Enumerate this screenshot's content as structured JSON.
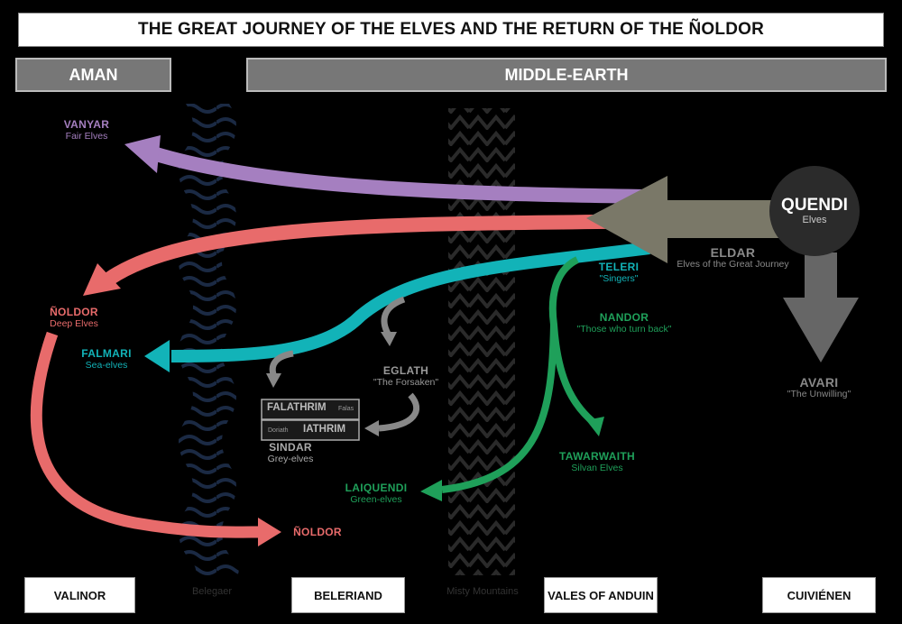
{
  "title": "THE GREAT JOURNEY OF THE ELVES AND THE RETURN OF THE ÑOLDOR",
  "regions": {
    "aman": "AMAN",
    "middle_earth": "MIDDLE-EARTH"
  },
  "locations": {
    "valinor": "VALINOR",
    "belegaer": "Belegaer",
    "beleriand": "BELERIAND",
    "misty_mountains": "Misty Mountains",
    "vales_of_anduin": "VALES OF ANDUIN",
    "cuivienen": "CUIVIÉNEN"
  },
  "groups": {
    "quendi": {
      "name": "QUENDI",
      "sub": "Elves"
    },
    "eldar": {
      "name": "ELDAR",
      "sub": "Elves of the Great Journey"
    },
    "avari": {
      "name": "AVARI",
      "sub": "\"The Unwilling\""
    },
    "vanyar": {
      "name": "VANYAR",
      "sub": "Fair Elves"
    },
    "noldor": {
      "name": "ÑOLDOR",
      "sub": "Deep Elves"
    },
    "noldor_return": {
      "name": "ÑOLDOR"
    },
    "teleri": {
      "name": "TELERI",
      "sub": "\"Singers\""
    },
    "falmari": {
      "name": "FALMARI",
      "sub": "Sea-elves"
    },
    "nandor": {
      "name": "NANDOR",
      "sub": "\"Those who turn back\""
    },
    "eglath": {
      "name": "EGLATH",
      "sub": "\"The Forsaken\""
    },
    "falathrim": {
      "name": "FALATHRIM",
      "tag": "Falas"
    },
    "iathrim": {
      "name": "IATHRIM",
      "tag": "Doriath"
    },
    "sindar": {
      "name": "SINDAR",
      "sub": "Grey-elves"
    },
    "tawarwaith": {
      "name": "TAWARWAITH",
      "sub": "Silvan Elves"
    },
    "laiquendi": {
      "name": "LAIQUENDI",
      "sub": "Green-elves"
    }
  },
  "colors": {
    "vanyar": "#a57fc0",
    "noldor": "#e86b6b",
    "teleri": "#12b3b8",
    "nandor": "#1fa05a",
    "eldar": "#7a7868",
    "avari": "#666666",
    "quendi": "#2b2b2b"
  }
}
